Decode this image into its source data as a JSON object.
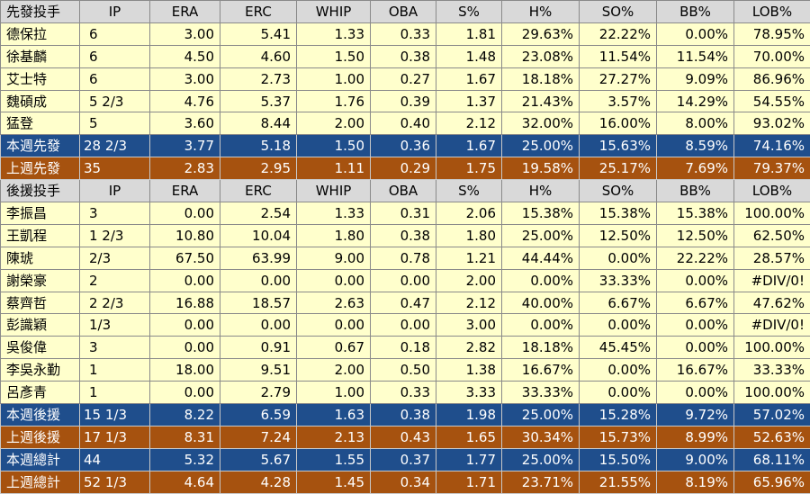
{
  "columns": [
    "IP",
    "ERA",
    "ERC",
    "WHIP",
    "OBA",
    "S%",
    "H%",
    "SO%",
    "BB%",
    "LOB%"
  ],
  "sections": [
    {
      "header": "先發投手",
      "rows": [
        {
          "name": "德保拉",
          "values": [
            "6",
            "3.00",
            "5.41",
            "1.33",
            "0.33",
            "1.81",
            "29.63%",
            "22.22%",
            "0.00%",
            "78.95%"
          ]
        },
        {
          "name": "徐基麟",
          "values": [
            "6",
            "4.50",
            "4.60",
            "1.50",
            "0.38",
            "1.48",
            "23.08%",
            "11.54%",
            "11.54%",
            "70.00%"
          ]
        },
        {
          "name": "艾士特",
          "values": [
            "6",
            "3.00",
            "2.73",
            "1.00",
            "0.27",
            "1.67",
            "18.18%",
            "27.27%",
            "9.09%",
            "86.96%"
          ]
        },
        {
          "name": "魏碩成",
          "values": [
            "5 2/3",
            "4.76",
            "5.37",
            "1.76",
            "0.39",
            "1.37",
            "21.43%",
            "3.57%",
            "14.29%",
            "54.55%"
          ]
        },
        {
          "name": "猛登",
          "values": [
            "5",
            "3.60",
            "8.44",
            "2.00",
            "0.40",
            "2.12",
            "32.00%",
            "16.00%",
            "8.00%",
            "93.02%"
          ]
        }
      ],
      "summaries": [
        {
          "style": "blue",
          "name": "本週先發",
          "values": [
            "28 2/3",
            "3.77",
            "5.18",
            "1.50",
            "0.36",
            "1.67",
            "25.00%",
            "15.63%",
            "8.59%",
            "74.16%"
          ]
        },
        {
          "style": "brown",
          "name": "上週先發",
          "values": [
            "35",
            "2.83",
            "2.95",
            "1.11",
            "0.29",
            "1.75",
            "19.58%",
            "25.17%",
            "7.69%",
            "79.37%"
          ]
        }
      ]
    },
    {
      "header": "後援投手",
      "rows": [
        {
          "name": "李振昌",
          "values": [
            "3",
            "0.00",
            "2.54",
            "1.33",
            "0.31",
            "2.06",
            "15.38%",
            "15.38%",
            "15.38%",
            "100.00%"
          ]
        },
        {
          "name": "王凱程",
          "values": [
            "1 2/3",
            "10.80",
            "10.04",
            "1.80",
            "0.38",
            "1.80",
            "25.00%",
            "12.50%",
            "12.50%",
            "62.50%"
          ]
        },
        {
          "name": "陳琥",
          "values": [
            "2/3",
            "67.50",
            "63.99",
            "9.00",
            "0.78",
            "1.21",
            "44.44%",
            "0.00%",
            "22.22%",
            "28.57%"
          ]
        },
        {
          "name": "謝榮豪",
          "values": [
            "2",
            "0.00",
            "0.00",
            "0.00",
            "0.00",
            "2.00",
            "0.00%",
            "33.33%",
            "0.00%",
            "#DIV/0!"
          ]
        },
        {
          "name": "蔡齊哲",
          "values": [
            "2 2/3",
            "16.88",
            "18.57",
            "2.63",
            "0.47",
            "2.12",
            "40.00%",
            "6.67%",
            "6.67%",
            "47.62%"
          ]
        },
        {
          "name": "彭識穎",
          "values": [
            "1/3",
            "0.00",
            "0.00",
            "0.00",
            "0.00",
            "3.00",
            "0.00%",
            "0.00%",
            "0.00%",
            "#DIV/0!"
          ]
        },
        {
          "name": "吳俊偉",
          "values": [
            "3",
            "0.00",
            "0.91",
            "0.67",
            "0.18",
            "2.82",
            "18.18%",
            "45.45%",
            "0.00%",
            "100.00%"
          ]
        },
        {
          "name": "李吳永勤",
          "values": [
            "1",
            "18.00",
            "9.51",
            "2.00",
            "0.50",
            "1.38",
            "16.67%",
            "0.00%",
            "16.67%",
            "33.33%"
          ]
        },
        {
          "name": "呂彥青",
          "values": [
            "1",
            "0.00",
            "2.79",
            "1.00",
            "0.33",
            "3.33",
            "33.33%",
            "0.00%",
            "0.00%",
            "100.00%"
          ]
        }
      ],
      "summaries": [
        {
          "style": "blue",
          "name": "本週後援",
          "values": [
            "15 1/3",
            "8.22",
            "6.59",
            "1.63",
            "0.38",
            "1.98",
            "25.00%",
            "15.28%",
            "9.72%",
            "57.02%"
          ]
        },
        {
          "style": "brown",
          "name": "上週後援",
          "values": [
            "17 1/3",
            "8.31",
            "7.24",
            "2.13",
            "0.43",
            "1.65",
            "30.34%",
            "15.73%",
            "8.99%",
            "52.63%"
          ]
        }
      ]
    }
  ],
  "totals": [
    {
      "style": "blue",
      "name": "本週總計",
      "values": [
        "44",
        "5.32",
        "5.67",
        "1.55",
        "0.37",
        "1.77",
        "25.00%",
        "15.50%",
        "9.00%",
        "68.11%"
      ]
    },
    {
      "style": "brown",
      "name": "上週總計",
      "values": [
        "52 1/3",
        "4.64",
        "4.28",
        "1.45",
        "0.34",
        "1.71",
        "23.71%",
        "21.55%",
        "8.19%",
        "65.96%"
      ]
    }
  ],
  "colors": {
    "header_bg": "#d9d9d9",
    "row_bg": "#ffffcc",
    "this_week": "#1f4e8c",
    "last_week": "#a6520f"
  }
}
